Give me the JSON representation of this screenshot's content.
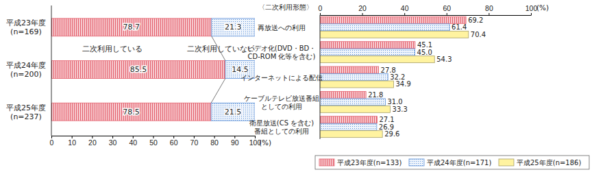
{
  "chart_data": [
    {
      "type": "bar",
      "orientation": "horizontal",
      "stacked": true,
      "data_labels": true,
      "grid": false,
      "legend": "inside",
      "categories": [
        "平成23年度\n(n=169)",
        "平成24年度\n(n=200)",
        "平成25年度\n(n=237)"
      ],
      "series": [
        {
          "name": "二次利用している",
          "color": "#e4606d",
          "values": [
            78.7,
            85.5,
            78.5
          ]
        },
        {
          "name": "二次利用していない",
          "color": "#5a8fd6",
          "values": [
            21.3,
            14.5,
            21.5
          ]
        }
      ],
      "xlim": [
        0,
        100
      ],
      "xticks": [
        0,
        10,
        20,
        30,
        40,
        50,
        60,
        70,
        80,
        90,
        100
      ],
      "xlabel": "(%)"
    },
    {
      "type": "bar",
      "orientation": "horizontal",
      "data_labels": true,
      "grid": false,
      "legend": "bottom",
      "title": "〈二次利用形態〉",
      "categories": [
        "再放送への利用",
        "ビデオ化(DVD・BD・\nCD-ROM 化等を含む)",
        "インターネットによる配信",
        "ケーブルテレビ放送番組\nとしての利用",
        "衛星放送(CS を含む)\n番組としての利用"
      ],
      "series": [
        {
          "name": "平成23年度(n=133)",
          "color": "#e4606d",
          "values": [
            69.2,
            45.1,
            27.8,
            21.8,
            27.1
          ],
          "value_labels": [
            "69.2",
            "45.1",
            "27.8",
            "21.8",
            "27.1"
          ]
        },
        {
          "name": "平成24年度(n=171)",
          "color": "#5a8fd6",
          "values": [
            61.4,
            45.0,
            32.2,
            31.0,
            26.9
          ],
          "value_labels": [
            "61.4",
            "45.0",
            "32.2",
            "31.0",
            "26.9"
          ]
        },
        {
          "name": "平成25年度(n=186)",
          "color": "#fff3a0",
          "values": [
            70.4,
            54.3,
            34.9,
            33.3,
            29.6
          ],
          "value_labels": [
            "70.4",
            "54.3",
            "34.9",
            "33.3",
            "29.6"
          ]
        }
      ],
      "xlim": [
        0,
        100
      ],
      "xticks": [
        0,
        20,
        40,
        60,
        80,
        100
      ],
      "xlabel": "(%)"
    }
  ]
}
